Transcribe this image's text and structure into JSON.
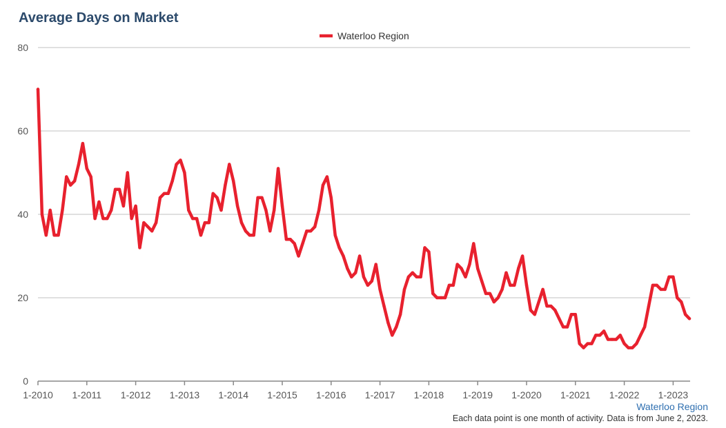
{
  "chart_data": {
    "type": "line",
    "title": "Average Days on Market",
    "x_tick_labels": [
      "1-2010",
      "1-2011",
      "1-2012",
      "1-2013",
      "1-2014",
      "1-2015",
      "1-2016",
      "1-2017",
      "1-2018",
      "1-2019",
      "1-2020",
      "1-2021",
      "1-2022",
      "1-2023"
    ],
    "y_ticks": [
      0,
      20,
      40,
      60,
      80
    ],
    "ylim": [
      0,
      80
    ],
    "grid": true,
    "legend_position": "top-center",
    "series": [
      {
        "name": "Waterloo Region",
        "color": "#e8212e",
        "start": "1-2010",
        "frequency": "monthly",
        "values": [
          70,
          40,
          35,
          41,
          35,
          35,
          41,
          49,
          47,
          48,
          52,
          57,
          51,
          49,
          39,
          43,
          39,
          39,
          41,
          46,
          46,
          42,
          50,
          39,
          42,
          32,
          38,
          37,
          36,
          38,
          44,
          45,
          45,
          48,
          52,
          53,
          50,
          41,
          39,
          39,
          35,
          38,
          38,
          45,
          44,
          41,
          47,
          52,
          48,
          42,
          38,
          36,
          35,
          35,
          44,
          44,
          41,
          36,
          41,
          51,
          42,
          34,
          34,
          33,
          30,
          33,
          36,
          36,
          37,
          41,
          47,
          49,
          44,
          35,
          32,
          30,
          27,
          25,
          26,
          30,
          25,
          23,
          24,
          28,
          22,
          18,
          14,
          11,
          13,
          16,
          22,
          25,
          26,
          25,
          25,
          32,
          31,
          21,
          20,
          20,
          20,
          23,
          23,
          28,
          27,
          25,
          28,
          33,
          27,
          24,
          21,
          21,
          19,
          20,
          22,
          26,
          23,
          23,
          27,
          30,
          23,
          17,
          16,
          19,
          22,
          18,
          18,
          17,
          15,
          13,
          13,
          16,
          16,
          9,
          8,
          9,
          9,
          11,
          11,
          12,
          10,
          10,
          10,
          11,
          9,
          8,
          8,
          9,
          11,
          13,
          18,
          23,
          23,
          22,
          22,
          25,
          25,
          20,
          19,
          16,
          15
        ]
      }
    ]
  },
  "footer": {
    "source": "Waterloo Region",
    "note": "Each data point is one month of activity. Data is from June 2, 2023."
  }
}
